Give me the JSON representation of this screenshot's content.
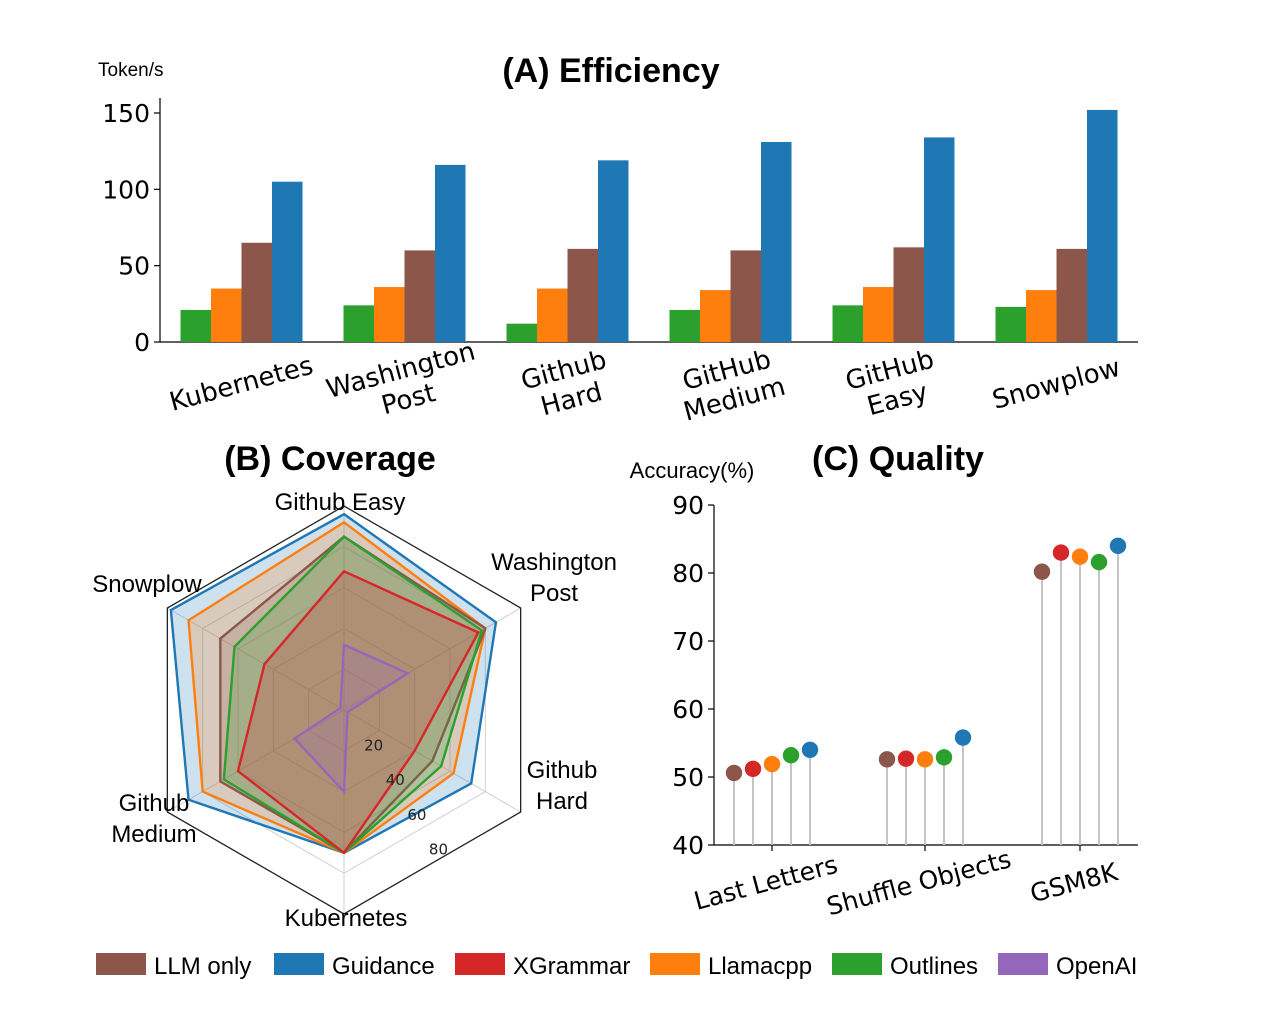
{
  "legend": [
    {
      "name": "LLM only",
      "color": "#8c564b"
    },
    {
      "name": "Guidance",
      "color": "#1f77b4"
    },
    {
      "name": "XGrammar",
      "color": "#d62728"
    },
    {
      "name": "Llamacpp",
      "color": "#ff7f0e"
    },
    {
      "name": "Outlines",
      "color": "#2ca02c"
    },
    {
      "name": "OpenAI",
      "color": "#9467bd"
    }
  ],
  "chart_data": [
    {
      "type": "bar",
      "title": "(A) Efficiency",
      "ylabel": "Token/s",
      "ylim": [
        0,
        160
      ],
      "yticks": [
        0,
        50,
        100,
        150
      ],
      "categories": [
        "Kubernetes",
        "Washington Post",
        "Github Hard",
        "GitHub Medium",
        "GitHub Easy",
        "Snowplow"
      ],
      "category_labels": [
        [
          "Kubernetes"
        ],
        [
          "Washington",
          "Post"
        ],
        [
          "Github",
          "Hard"
        ],
        [
          "GitHub",
          "Medium"
        ],
        [
          "GitHub",
          "Easy"
        ],
        [
          "Snowplow"
        ]
      ],
      "series": [
        {
          "name": "Outlines",
          "color": "#2ca02c",
          "values": [
            21,
            24,
            12,
            21,
            24,
            23
          ]
        },
        {
          "name": "Llamacpp",
          "color": "#ff7f0e",
          "values": [
            35,
            36,
            35,
            34,
            36,
            34
          ]
        },
        {
          "name": "LLM only",
          "color": "#8c564b",
          "values": [
            65,
            60,
            61,
            60,
            62,
            61
          ]
        },
        {
          "name": "Guidance",
          "color": "#1f77b4",
          "values": [
            105,
            116,
            119,
            131,
            134,
            152
          ]
        }
      ]
    },
    {
      "type": "radar",
      "title": "(B)  Coverage",
      "axes": [
        "Github Easy",
        "Washington Post",
        "Github Hard",
        "Kubernetes",
        "Github Medium",
        "Snowplow"
      ],
      "axis_labels": [
        [
          "Github Easy"
        ],
        [
          "Washington",
          "Post"
        ],
        [
          "Github",
          "Hard"
        ],
        [
          "Kubernetes"
        ],
        [
          "Github",
          "Medium"
        ],
        [
          "Snowplow"
        ]
      ],
      "rmax": 100,
      "rticks": [
        20,
        40,
        60,
        80
      ],
      "series": [
        {
          "name": "Guidance",
          "color": "#1f77b4",
          "values": [
            96,
            86,
            72,
            70,
            88,
            98
          ]
        },
        {
          "name": "Llamacpp",
          "color": "#ff7f0e",
          "values": [
            92,
            80,
            62,
            70,
            80,
            88
          ]
        },
        {
          "name": "LLM only",
          "color": "#8c564b",
          "values": [
            85,
            80,
            50,
            70,
            70,
            70
          ]
        },
        {
          "name": "Outlines",
          "color": "#2ca02c",
          "values": [
            85,
            78,
            55,
            70,
            68,
            62
          ]
        },
        {
          "name": "XGrammar",
          "color": "#d62728",
          "values": [
            68,
            76,
            40,
            70,
            60,
            45
          ]
        },
        {
          "name": "OpenAI",
          "color": "#9467bd",
          "values": [
            32,
            36,
            2,
            40,
            28,
            2
          ]
        }
      ]
    },
    {
      "type": "lollipop",
      "title": "(C) Quality",
      "ylabel": "Accuracy(%)",
      "ylim": [
        40,
        90
      ],
      "yticks": [
        40,
        50,
        60,
        70,
        80,
        90
      ],
      "categories": [
        "Last Letters",
        "Shuffle Objects",
        "GSM8K"
      ],
      "series": [
        {
          "name": "LLM only",
          "color": "#8c564b",
          "values": [
            50.6,
            52.6,
            80.2
          ]
        },
        {
          "name": "XGrammar",
          "color": "#d62728",
          "values": [
            51.2,
            52.7,
            83.0
          ]
        },
        {
          "name": "Llamacpp",
          "color": "#ff7f0e",
          "values": [
            51.9,
            52.6,
            82.4
          ]
        },
        {
          "name": "Outlines",
          "color": "#2ca02c",
          "values": [
            53.2,
            52.9,
            81.6
          ]
        },
        {
          "name": "Guidance",
          "color": "#1f77b4",
          "values": [
            54.0,
            55.8,
            84.0
          ]
        }
      ]
    }
  ]
}
